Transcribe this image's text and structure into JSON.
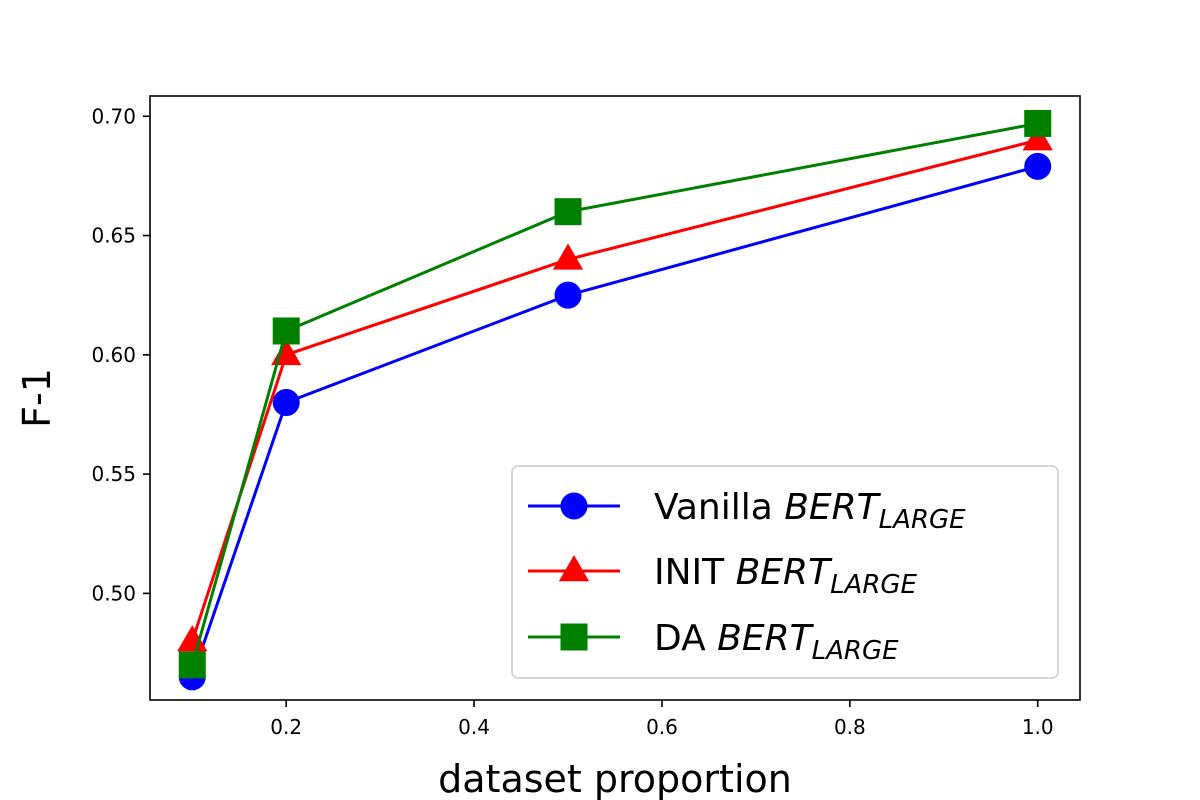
{
  "chart_data": {
    "type": "line",
    "title": "",
    "xlabel": "dataset proportion",
    "ylabel": "F-1",
    "xlim": [
      0.055,
      1.045
    ],
    "ylim": [
      0.4553,
      0.7085
    ],
    "xticks": [
      0.2,
      0.4,
      0.6,
      0.8,
      1.0
    ],
    "xtick_labels": [
      "0.2",
      "0.4",
      "0.6",
      "0.8",
      "1.0"
    ],
    "yticks": [
      0.5,
      0.55,
      0.6,
      0.65,
      0.7
    ],
    "ytick_labels": [
      "0.50",
      "0.55",
      "0.60",
      "0.65",
      "0.70"
    ],
    "grid": false,
    "legend_position": "bottom-right",
    "x": [
      0.1,
      0.2,
      0.5,
      1.0
    ],
    "series": [
      {
        "name": "Vanilla BERT_LARGE",
        "name_prefix": "Vanilla ",
        "name_main": "BERT",
        "name_sub": "LARGE",
        "values": [
          0.465,
          0.58,
          0.625,
          0.679
        ],
        "color": "#0000ff",
        "marker": "circle"
      },
      {
        "name": "INIT BERT_LARGE",
        "name_prefix": "INIT ",
        "name_main": "BERT",
        "name_sub": "LARGE",
        "values": [
          0.48,
          0.6,
          0.64,
          0.69
        ],
        "color": "#ff0000",
        "marker": "triangle"
      },
      {
        "name": "DA BERT_LARGE",
        "name_prefix": "DA ",
        "name_main": "BERT",
        "name_sub": "LARGE",
        "values": [
          0.47,
          0.61,
          0.66,
          0.697
        ],
        "color": "#008000",
        "marker": "square"
      }
    ]
  }
}
